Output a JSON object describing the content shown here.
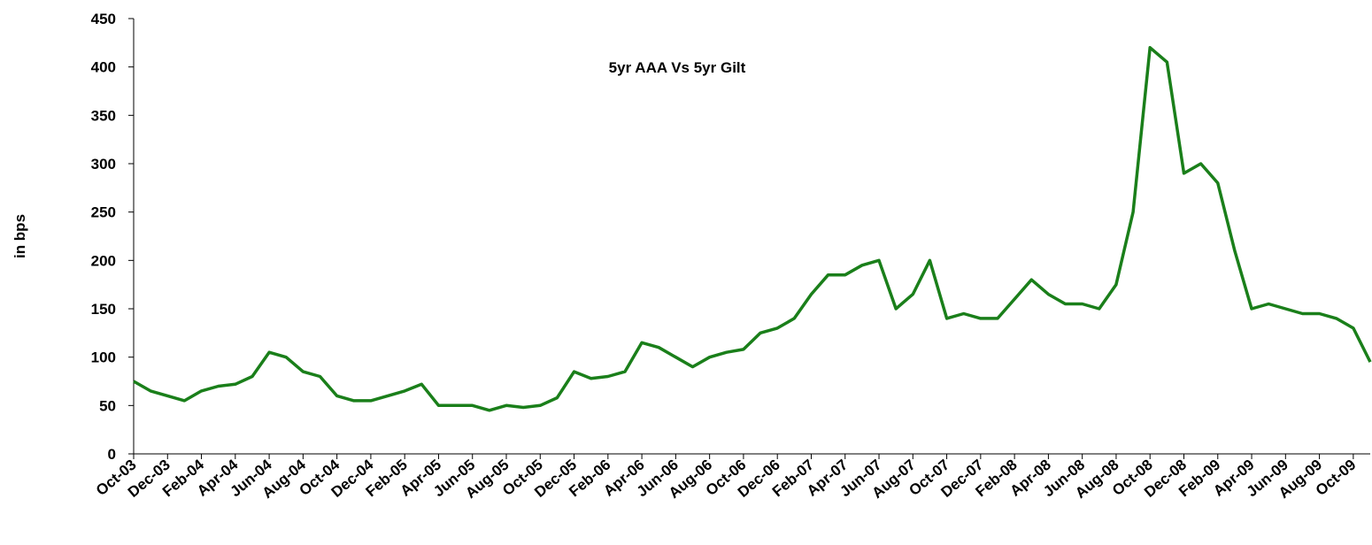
{
  "chart_data": {
    "type": "line",
    "title": "5yr AAA Vs 5yr Gilt",
    "y_label": "in bps",
    "categories": [
      "Oct-03",
      null,
      "Dec-03",
      null,
      "Feb-04",
      null,
      "Apr-04",
      null,
      "Jun-04",
      null,
      "Aug-04",
      null,
      "Oct-04",
      null,
      "Dec-04",
      null,
      "Feb-05",
      null,
      "Apr-05",
      null,
      "Jun-05",
      null,
      "Aug-05",
      null,
      "Oct-05",
      null,
      "Dec-05",
      null,
      "Feb-06",
      null,
      "Apr-06",
      null,
      "Jun-06",
      null,
      "Aug-06",
      null,
      "Oct-06",
      null,
      "Dec-06",
      null,
      "Feb-07",
      null,
      "Apr-07",
      null,
      "Jun-07",
      null,
      "Aug-07",
      null,
      "Oct-07",
      null,
      "Dec-07",
      null,
      "Feb-08",
      null,
      "Apr-08",
      null,
      "Jun-08",
      null,
      "Aug-08",
      null,
      "Oct-08",
      null,
      "Dec-08",
      null,
      "Feb-09",
      null,
      "Apr-09",
      null,
      "Jun-09",
      null,
      "Aug-09",
      null,
      "Oct-09",
      null
    ],
    "series": [
      {
        "name": "5yr AAA Vs 5yr Gilt",
        "color": "#1a7f1a",
        "values": [
          75,
          65,
          60,
          55,
          65,
          70,
          72,
          80,
          105,
          100,
          85,
          80,
          60,
          55,
          55,
          60,
          65,
          72,
          50,
          50,
          50,
          45,
          50,
          48,
          50,
          58,
          85,
          78,
          80,
          85,
          115,
          110,
          100,
          90,
          100,
          105,
          108,
          125,
          130,
          140,
          165,
          185,
          185,
          195,
          200,
          150,
          165,
          200,
          140,
          145,
          140,
          140,
          160,
          180,
          165,
          155,
          155,
          150,
          175,
          250,
          420,
          405,
          290,
          300,
          280,
          210,
          150,
          155,
          150,
          145,
          145,
          140,
          130,
          95
        ]
      }
    ],
    "ylim": [
      0,
      450
    ],
    "yticks": [
      0,
      50,
      100,
      150,
      200,
      250,
      300,
      350,
      400,
      450
    ]
  }
}
